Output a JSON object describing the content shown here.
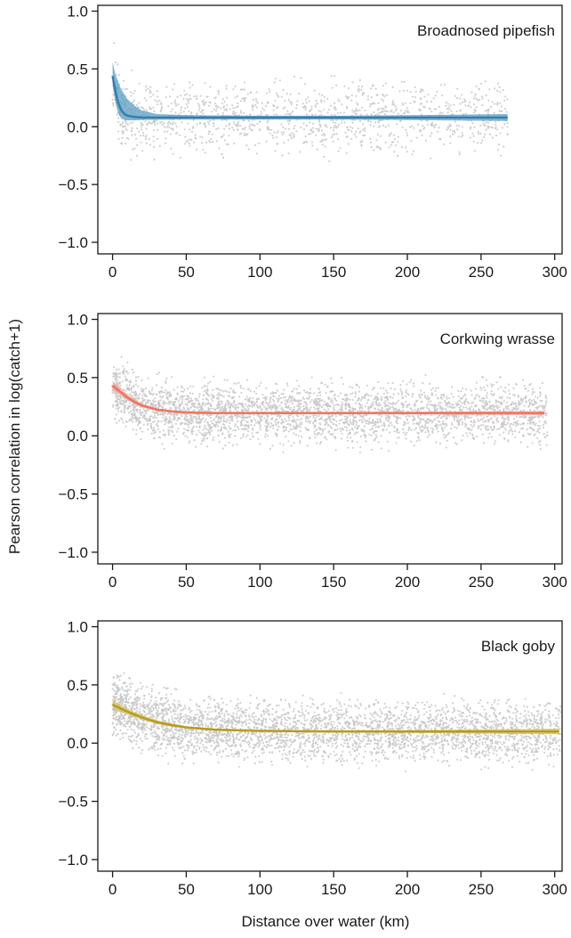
{
  "figure": {
    "ylabel": "Pearson correlation in log(catch+1)",
    "xlabel": "Distance over water (km)"
  },
  "chart_data": [
    {
      "type": "scatter",
      "title": "Broadnosed pipefish",
      "xlim": [
        -10,
        305
      ],
      "ylim": [
        -1.1,
        1.05
      ],
      "x_ticks": [
        0,
        50,
        100,
        150,
        200,
        250,
        300
      ],
      "y_ticks": [
        -1.0,
        -0.5,
        0.0,
        0.5,
        1.0
      ],
      "y_tick_labels": [
        "−1.0",
        "−0.5",
        "0.0",
        "0.5",
        "1.0"
      ],
      "point_color": "#c8c8c8",
      "line_color": "#2e7fb0",
      "band_color": "#5b9cc3",
      "points": {
        "n": 1300,
        "x_max": 268,
        "spread": 0.2,
        "seed": 11
      },
      "fit": {
        "x": [
          0,
          2,
          4,
          6,
          8,
          10,
          15,
          20,
          30,
          50,
          100,
          150,
          200,
          268
        ],
        "y": [
          0.44,
          0.3,
          0.2,
          0.14,
          0.11,
          0.095,
          0.085,
          0.08,
          0.08,
          0.08,
          0.08,
          0.08,
          0.08,
          0.08
        ],
        "lower": [
          0.35,
          0.2,
          0.11,
          0.07,
          0.06,
          0.055,
          0.055,
          0.058,
          0.06,
          0.062,
          0.062,
          0.062,
          0.058,
          0.05
        ],
        "upper": [
          0.56,
          0.45,
          0.38,
          0.32,
          0.28,
          0.24,
          0.18,
          0.14,
          0.11,
          0.1,
          0.095,
          0.095,
          0.1,
          0.11
        ]
      }
    },
    {
      "type": "scatter",
      "title": "Corkwing wrasse",
      "xlim": [
        -10,
        305
      ],
      "ylim": [
        -1.1,
        1.05
      ],
      "x_ticks": [
        0,
        50,
        100,
        150,
        200,
        250,
        300
      ],
      "y_ticks": [
        -1.0,
        -0.5,
        0.0,
        0.5,
        1.0
      ],
      "y_tick_labels": [
        "−1.0",
        "−0.5",
        "0.0",
        "0.5",
        "1.0"
      ],
      "point_color": "#c8c8c8",
      "line_color": "#f0725e",
      "band_color": "#f5a094",
      "points": {
        "n": 3200,
        "x_max": 295,
        "spread": 0.17,
        "seed": 23
      },
      "fit": {
        "x": [
          0,
          5,
          10,
          15,
          20,
          30,
          40,
          50,
          70,
          100,
          150,
          200,
          250,
          293
        ],
        "y": [
          0.43,
          0.38,
          0.33,
          0.29,
          0.26,
          0.225,
          0.21,
          0.2,
          0.195,
          0.195,
          0.195,
          0.195,
          0.195,
          0.195
        ],
        "lower": [
          0.39,
          0.35,
          0.31,
          0.27,
          0.245,
          0.215,
          0.2,
          0.19,
          0.185,
          0.185,
          0.185,
          0.183,
          0.18,
          0.178
        ],
        "upper": [
          0.47,
          0.41,
          0.35,
          0.31,
          0.275,
          0.235,
          0.22,
          0.21,
          0.205,
          0.205,
          0.205,
          0.207,
          0.21,
          0.212
        ]
      }
    },
    {
      "type": "scatter",
      "title": "Black goby",
      "xlim": [
        -10,
        305
      ],
      "ylim": [
        -1.1,
        1.05
      ],
      "x_ticks": [
        0,
        50,
        100,
        150,
        200,
        250,
        300
      ],
      "y_ticks": [
        -1.0,
        -0.5,
        0.0,
        0.5,
        1.0
      ],
      "y_tick_labels": [
        "−1.0",
        "−0.5",
        "0.0",
        "0.5",
        "1.0"
      ],
      "point_color": "#c8c8c8",
      "line_color": "#b89a1f",
      "band_color": "#d4bf5c",
      "points": {
        "n": 3600,
        "x_max": 304,
        "spread": 0.17,
        "seed": 37
      },
      "fit": {
        "x": [
          0,
          5,
          10,
          20,
          30,
          40,
          50,
          70,
          100,
          150,
          200,
          250,
          303
        ],
        "y": [
          0.33,
          0.3,
          0.27,
          0.22,
          0.18,
          0.155,
          0.135,
          0.115,
          0.105,
          0.1,
          0.1,
          0.1,
          0.1
        ],
        "lower": [
          0.29,
          0.27,
          0.245,
          0.2,
          0.165,
          0.14,
          0.125,
          0.105,
          0.095,
          0.09,
          0.088,
          0.082,
          0.075
        ],
        "upper": [
          0.37,
          0.33,
          0.295,
          0.24,
          0.195,
          0.17,
          0.145,
          0.125,
          0.115,
          0.11,
          0.112,
          0.118,
          0.125
        ]
      }
    }
  ]
}
